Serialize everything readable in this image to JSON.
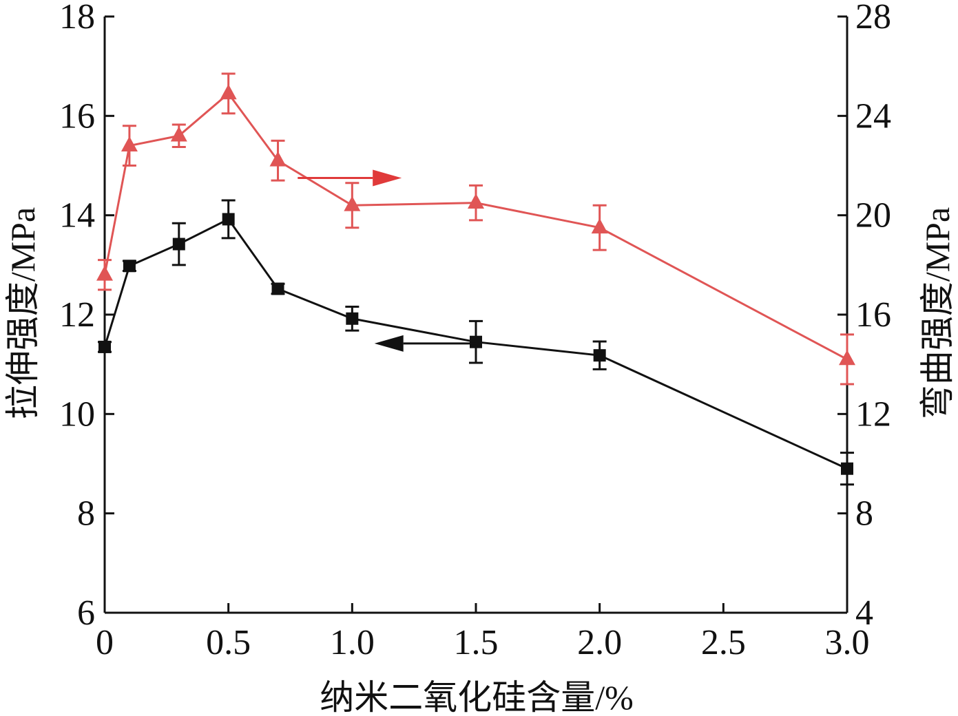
{
  "chart_data": {
    "type": "line",
    "title": "",
    "xlabel": "纳米二氧化硅含量/%",
    "ylabel_left": "拉伸强度/MPa",
    "ylabel_right": "弯曲强度/MPa",
    "xlim": [
      0,
      3.0
    ],
    "ylim_left": [
      6,
      18
    ],
    "ylim_right": [
      4,
      28
    ],
    "x_ticks": [
      0,
      0.5,
      1.0,
      1.5,
      2.0,
      2.5,
      3.0
    ],
    "x_tick_labels": [
      "0",
      "0.5",
      "1.0",
      "1.5",
      "2.0",
      "2.5",
      "3.0"
    ],
    "y_left_ticks": [
      6,
      8,
      10,
      12,
      14,
      16,
      18
    ],
    "y_left_tick_labels": [
      "6",
      "8",
      "10",
      "12",
      "14",
      "16",
      "18"
    ],
    "y_right_ticks": [
      4,
      8,
      12,
      16,
      20,
      24,
      28
    ],
    "y_right_tick_labels": [
      "4",
      "8",
      "12",
      "16",
      "20",
      "24",
      "28"
    ],
    "grid": false,
    "legend": "none",
    "series": [
      {
        "axis": "left",
        "marker": "square",
        "color": "#111111",
        "x": [
          0,
          0.1,
          0.3,
          0.5,
          0.7,
          1.0,
          1.5,
          2.0,
          3.0
        ],
        "y": [
          11.35,
          12.98,
          13.42,
          13.92,
          12.52,
          11.92,
          11.45,
          11.18,
          8.9
        ],
        "error": [
          0.1,
          0.1,
          0.42,
          0.38,
          0.1,
          0.24,
          0.42,
          0.28,
          0.32
        ]
      },
      {
        "axis": "right",
        "marker": "triangle",
        "color": "#e05555",
        "x": [
          0,
          0.1,
          0.3,
          0.5,
          0.7,
          1.0,
          1.5,
          2.0,
          3.0
        ],
        "y": [
          17.6,
          22.8,
          23.2,
          24.9,
          22.2,
          20.4,
          20.5,
          19.5,
          14.2
        ],
        "error": [
          0.6,
          0.8,
          0.45,
          0.8,
          0.8,
          0.9,
          0.7,
          0.9,
          1.0
        ]
      }
    ],
    "annotations": [
      {
        "type": "arrow",
        "direction": "right",
        "color": "#e03a3a",
        "x_from": 0.78,
        "x_to": 1.2,
        "y": 21.5,
        "axis": "right"
      },
      {
        "type": "arrow",
        "direction": "left",
        "color": "#111111",
        "x_from": 1.5,
        "x_to": 1.09,
        "y": 11.42,
        "axis": "left"
      }
    ]
  }
}
